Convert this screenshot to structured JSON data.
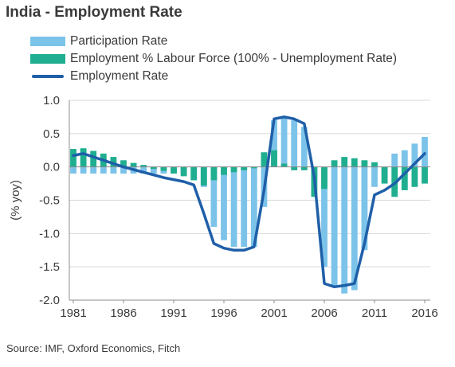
{
  "title": "India - Employment Rate",
  "source": "Source: IMF, Oxford Economics, Fitch",
  "colors": {
    "participation": "#7cc3ea",
    "employment_lf": "#1fae8f",
    "employment_rate": "#1f5fa8"
  },
  "chart_data": {
    "type": "bar",
    "ylabel": "(% yoy)",
    "ylim": [
      -2.0,
      1.0
    ],
    "yticks": [
      1.0,
      0.5,
      0.0,
      -0.5,
      -1.0,
      -1.5,
      -2.0
    ],
    "ytick_labels": [
      "1.0",
      "0.5",
      "0.0",
      "-0.5",
      "-1.0",
      "-1.5",
      "-2.0"
    ],
    "xtick_labels": [
      "1981",
      "1986",
      "1991",
      "1996",
      "2001",
      "2006",
      "2011",
      "2016"
    ],
    "x": [
      1981,
      1982,
      1983,
      1984,
      1985,
      1986,
      1987,
      1988,
      1989,
      1990,
      1991,
      1992,
      1993,
      1994,
      1995,
      1996,
      1997,
      1998,
      1999,
      2000,
      2001,
      2002,
      2003,
      2004,
      2005,
      2006,
      2007,
      2008,
      2009,
      2010,
      2011,
      2012,
      2013,
      2014,
      2015,
      2016
    ],
    "legend": [
      "Participation Rate",
      "Employment % Labour Force (100% - Unemployment Rate)",
      "Employment Rate"
    ],
    "series": [
      {
        "name": "Participation Rate",
        "kind": "bar",
        "values": [
          -0.1,
          -0.1,
          -0.1,
          -0.1,
          -0.1,
          -0.1,
          -0.1,
          -0.1,
          -0.1,
          -0.1,
          -0.1,
          -0.1,
          -0.2,
          -0.3,
          -0.9,
          -1.1,
          -1.2,
          -1.2,
          -1.2,
          -0.6,
          0.7,
          0.75,
          0.7,
          0.6,
          -0.2,
          -1.5,
          -1.8,
          -1.9,
          -1.85,
          -1.25,
          -0.3,
          -0.1,
          0.2,
          0.25,
          0.35,
          0.45
        ]
      },
      {
        "name": "Employment % Labour Force (100% - Unemployment Rate)",
        "kind": "bar",
        "values": [
          0.27,
          0.28,
          0.24,
          0.2,
          0.15,
          0.1,
          0.06,
          0.03,
          -0.03,
          -0.06,
          -0.1,
          -0.14,
          -0.2,
          -0.28,
          -0.2,
          -0.12,
          -0.08,
          -0.05,
          -0.02,
          0.22,
          0.25,
          0.05,
          -0.05,
          -0.05,
          -0.45,
          -0.33,
          0.1,
          0.15,
          0.13,
          0.1,
          0.07,
          -0.25,
          -0.45,
          -0.35,
          -0.3,
          -0.25
        ]
      },
      {
        "name": "Employment Rate",
        "kind": "line",
        "values": [
          0.17,
          0.2,
          0.15,
          0.1,
          0.05,
          0.0,
          -0.04,
          -0.08,
          -0.12,
          -0.16,
          -0.19,
          -0.22,
          -0.27,
          -0.7,
          -1.15,
          -1.22,
          -1.25,
          -1.25,
          -1.2,
          -0.35,
          0.72,
          0.75,
          0.72,
          0.65,
          -0.15,
          -1.75,
          -1.8,
          -1.78,
          -1.75,
          -1.15,
          -0.42,
          -0.35,
          -0.25,
          -0.1,
          0.05,
          0.2
        ]
      }
    ]
  }
}
